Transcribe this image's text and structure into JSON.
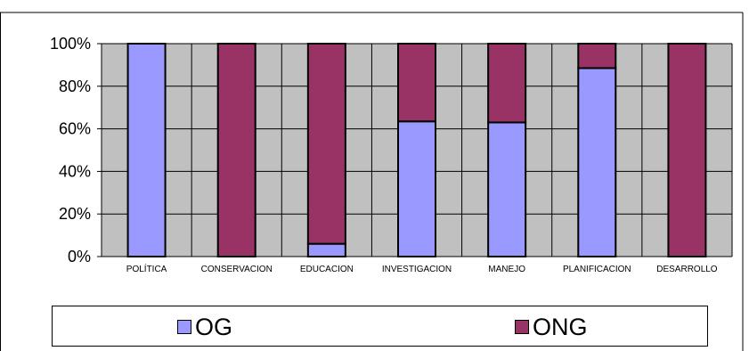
{
  "chart_data": {
    "type": "bar",
    "stacked": true,
    "percent": true,
    "categories": [
      "POLÍTICA",
      "CONSERVACION",
      "EDUCACION",
      "INVESTIGACION",
      "MANEJO",
      "PLANIFICACION",
      "DESARROLLO"
    ],
    "series": [
      {
        "name": "OG",
        "color": "#9999ff",
        "values": [
          100,
          0,
          6,
          63.5,
          63,
          88.5,
          0
        ]
      },
      {
        "name": "ONG",
        "color": "#993366",
        "values": [
          0,
          100,
          94,
          36.5,
          37,
          11.5,
          100
        ]
      }
    ],
    "y_ticks": [
      "0%",
      "20%",
      "40%",
      "60%",
      "80%",
      "100%"
    ],
    "ylim": [
      0,
      100
    ],
    "plot_background": "#c0c0c0",
    "grid": true,
    "legend_position": "bottom"
  }
}
